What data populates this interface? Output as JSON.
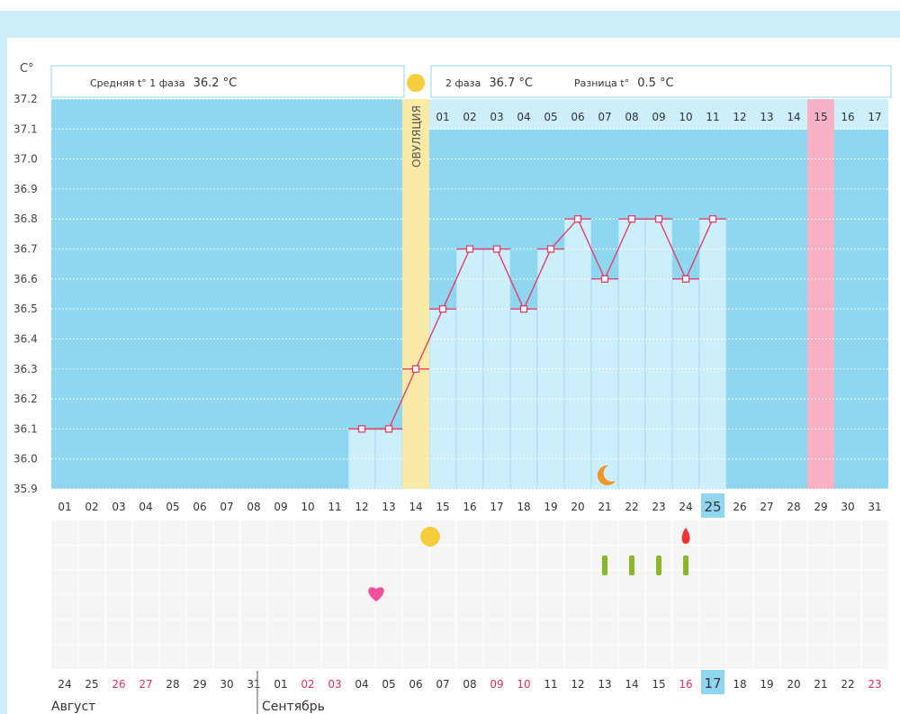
{
  "chart_data": {
    "type": "line",
    "y_unit": "C°",
    "ylim": [
      35.9,
      37.2
    ],
    "yticks": [
      "37.2",
      "37.1",
      "37.0",
      "36.9",
      "36.8",
      "36.7",
      "36.6",
      "36.5",
      "36.4",
      "36.3",
      "36.2",
      "36.1",
      "36.0",
      "35.9"
    ],
    "phase1_label": "Средняя t° 1 фаза",
    "phase1_value": "36.2 °C",
    "phase2_label": "2 фаза",
    "phase2_value": "36.7 °C",
    "diff_label": "Разница t°",
    "diff_value": "0.5 °C",
    "ovulation_label": "ОВУЛЯЦИЯ",
    "cycle_days": [
      "01",
      "02",
      "03",
      "04",
      "05",
      "06",
      "07",
      "08",
      "09",
      "10",
      "11",
      "12",
      "13",
      "14",
      "15",
      "16",
      "17",
      "18",
      "19",
      "20",
      "21",
      "22",
      "23",
      "24",
      "25",
      "26",
      "27",
      "28",
      "29",
      "30",
      "31"
    ],
    "current_day": "25",
    "post_ovulation_days": [
      "01",
      "02",
      "03",
      "04",
      "05",
      "06",
      "07",
      "08",
      "09",
      "10",
      "11",
      "12",
      "13",
      "14",
      "15",
      "16",
      "17"
    ],
    "highlight_post_day": "15",
    "temperatures": [
      null,
      null,
      null,
      null,
      null,
      null,
      null,
      null,
      null,
      null,
      null,
      36.1,
      36.1,
      36.3,
      36.5,
      36.7,
      36.7,
      36.5,
      36.7,
      36.8,
      36.6,
      36.8,
      36.8,
      36.6,
      36.8,
      null,
      null,
      null,
      null,
      null,
      null
    ],
    "calendar_dates": [
      {
        "d": "24",
        "w": false
      },
      {
        "d": "25",
        "w": false
      },
      {
        "d": "26",
        "w": true
      },
      {
        "d": "27",
        "w": true
      },
      {
        "d": "28",
        "w": false
      },
      {
        "d": "29",
        "w": false
      },
      {
        "d": "30",
        "w": false
      },
      {
        "d": "31",
        "w": false
      },
      {
        "d": "01",
        "w": false
      },
      {
        "d": "02",
        "w": true
      },
      {
        "d": "03",
        "w": true
      },
      {
        "d": "04",
        "w": false
      },
      {
        "d": "05",
        "w": false
      },
      {
        "d": "06",
        "w": false
      },
      {
        "d": "07",
        "w": false
      },
      {
        "d": "08",
        "w": false
      },
      {
        "d": "09",
        "w": true
      },
      {
        "d": "10",
        "w": true
      },
      {
        "d": "11",
        "w": false
      },
      {
        "d": "12",
        "w": false
      },
      {
        "d": "13",
        "w": false
      },
      {
        "d": "14",
        "w": false
      },
      {
        "d": "15",
        "w": false
      },
      {
        "d": "16",
        "w": true
      },
      {
        "d": "17",
        "w": false
      },
      {
        "d": "18",
        "w": false
      },
      {
        "d": "19",
        "w": false
      },
      {
        "d": "20",
        "w": false
      },
      {
        "d": "21",
        "w": false
      },
      {
        "d": "22",
        "w": false
      },
      {
        "d": "23",
        "w": true
      }
    ],
    "month_1": "Август",
    "month_2": "Сентябрь",
    "markers": [
      {
        "type": "moon-icon",
        "day": "21"
      },
      {
        "type": "ovulation-sun-icon",
        "day": "14"
      },
      {
        "type": "heart-icon",
        "day": "12"
      },
      {
        "type": "blood-drop-icon",
        "day": "24"
      },
      {
        "type": "green-bar-icon",
        "day": "21"
      },
      {
        "type": "green-bar-icon",
        "day": "22"
      },
      {
        "type": "green-bar-icon",
        "day": "23"
      },
      {
        "type": "green-bar-icon",
        "day": "24"
      }
    ]
  },
  "colors": {
    "plot_bg": "#8fd6f0",
    "column_fill": "#cdeefb",
    "line": "#e0406a",
    "ovulation": "#fbe9a6",
    "pink_day": "#f7b1c6",
    "weekend_text": "#e0305a",
    "sun": "#f6cd3c",
    "heart": "#f04f9c",
    "drop": "#ee3333",
    "green": "#8ab82a",
    "moon": "#f3962a",
    "current_day_bg": "#8fd6f0"
  }
}
